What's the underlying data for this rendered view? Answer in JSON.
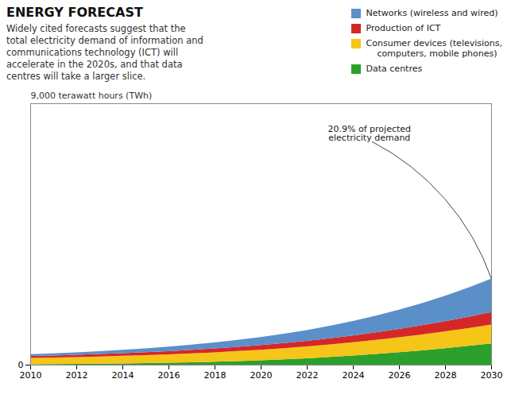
{
  "chart_data": {
    "type": "area",
    "stacked": true,
    "title": "ENERGY FORECAST",
    "subtitle": "Widely cited forecasts suggest that the\ntotal electricity demand of information and\ncommunications technology (ICT) will\naccelerate in the 2020s, and that data\ncentres will take a larger slice.",
    "ylabel": "9,000 terawatt hours (TWh)",
    "annotation": "20.9% of projected\nelectricity demand",
    "x": [
      2010,
      2011,
      2012,
      2013,
      2014,
      2015,
      2016,
      2017,
      2018,
      2019,
      2020,
      2021,
      2022,
      2023,
      2024,
      2025,
      2026,
      2027,
      2028,
      2029,
      2030
    ],
    "series": [
      {
        "name": "Data centres",
        "color": "#2ca02c",
        "values": [
          15,
          20,
          25,
          33,
          42,
          53,
          66,
          82,
          102,
          125,
          152,
          185,
          222,
          265,
          313,
          368,
          428,
          495,
          568,
          647,
          733
        ]
      },
      {
        "name": "Consumer devices (televisions,\n    computers, mobile phones)",
        "color": "#f5c518",
        "values": [
          220,
          228,
          238,
          250,
          263,
          277,
          292,
          308,
          325,
          344,
          364,
          385,
          408,
          432,
          458,
          486,
          515,
          546,
          578,
          612,
          648
        ]
      },
      {
        "name": "Production of ICT",
        "color": "#d62728",
        "values": [
          65,
          70,
          76,
          83,
          91,
          100,
          110,
          121,
          133,
          146,
          160,
          176,
          194,
          214,
          237,
          262,
          290,
          321,
          355,
          392,
          432
        ]
      },
      {
        "name": "Networks (wireless and wired)",
        "color": "#5b8fc9",
        "values": [
          65,
          75,
          87,
          100,
          115,
          133,
          154,
          178,
          206,
          239,
          276,
          319,
          369,
          427,
          494,
          571,
          659,
          760,
          874,
          1003,
          1150
        ]
      }
    ],
    "xlim": [
      2010,
      2030
    ],
    "xticks": [
      2010,
      2012,
      2014,
      2016,
      2018,
      2020,
      2022,
      2024,
      2026,
      2028,
      2030
    ],
    "ylim": [
      0,
      9000
    ],
    "yticks": [
      0
    ],
    "grid": false
  }
}
